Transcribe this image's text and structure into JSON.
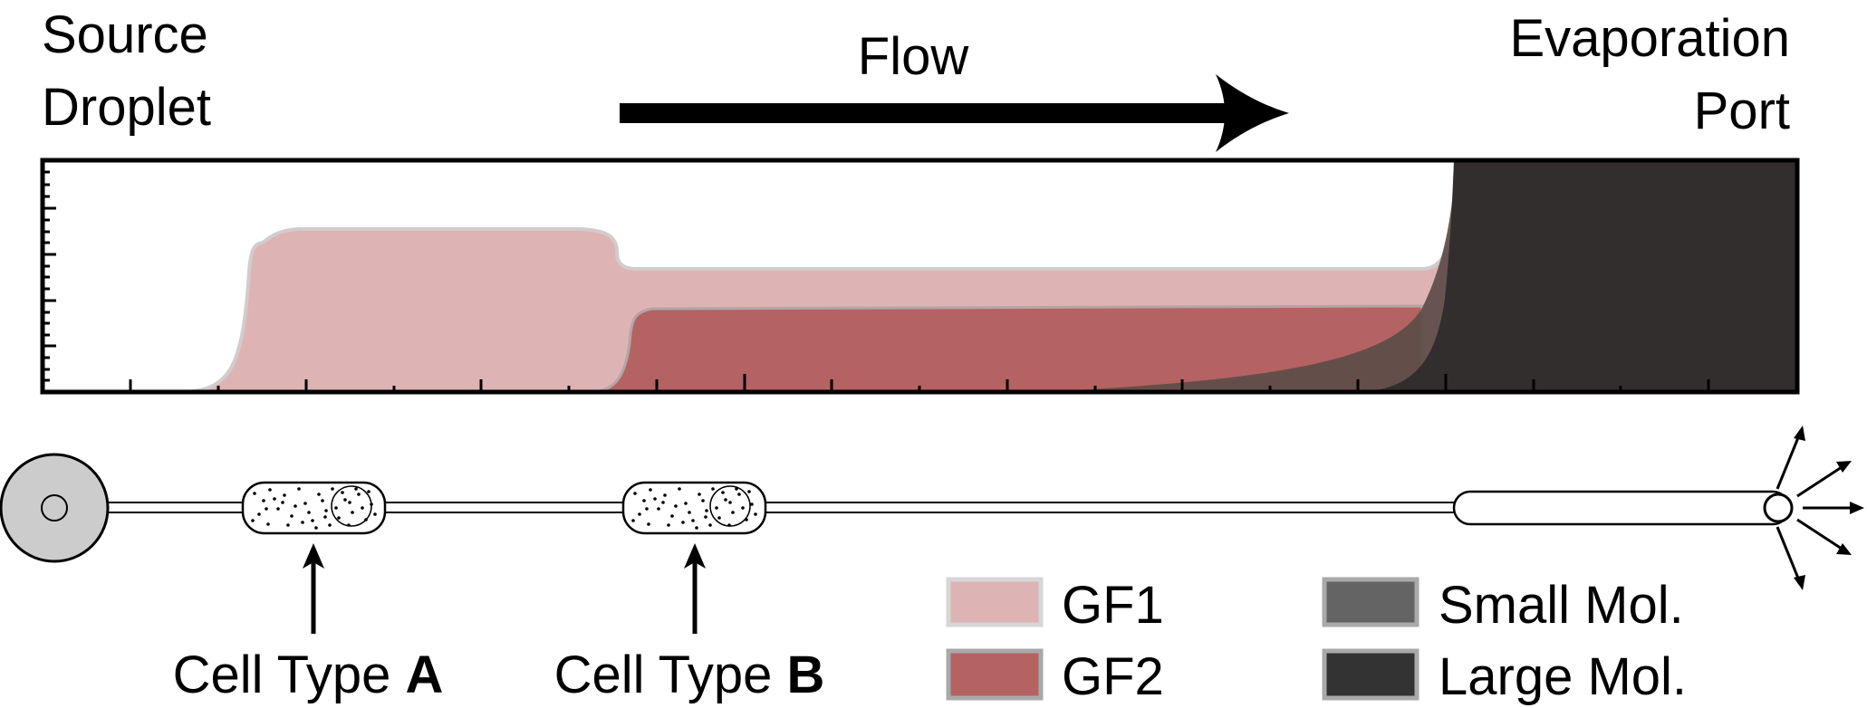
{
  "labels": {
    "source_line1": "Source",
    "source_line2": "Droplet",
    "flow": "Flow",
    "evap_line1": "Evaporation",
    "evap_line2": "Port",
    "cell_a_prefix": "Cell Type ",
    "cell_a_letter": "A",
    "cell_b_prefix": "Cell Type ",
    "cell_b_letter": "B"
  },
  "legend": {
    "items": [
      {
        "label": "GF1",
        "color": "#deb3b3",
        "border": "#d6d6d6"
      },
      {
        "label": "GF2",
        "color": "#b56262",
        "border": "#a9a9a9"
      },
      {
        "label": "Small Mol.",
        "color": "#646464",
        "border": "#a9a9a9"
      },
      {
        "label": "Large Mol.",
        "color": "#333333",
        "border": "#a9a9a9"
      }
    ]
  },
  "colors": {
    "gf1": "#deb3b3",
    "gf2": "#b56262",
    "small_mol": "#5e4c48",
    "large_mol": "#322e2e",
    "droplet": "#cccccc",
    "outline": "#000000"
  },
  "icons": {
    "flow_arrow": "right-arrow-icon",
    "evaporation_arrows": "radiating-arrows-icon",
    "cell_a_arrow": "up-arrow-icon",
    "cell_b_arrow": "up-arrow-icon"
  }
}
